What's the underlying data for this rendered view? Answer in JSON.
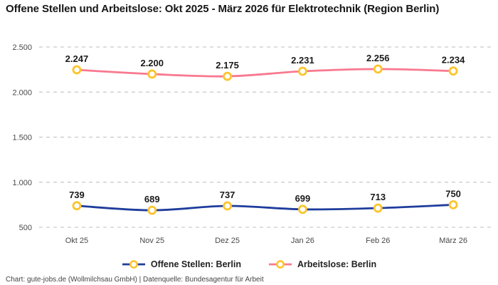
{
  "title": "Offene Stellen und Arbeitslose: Okt 2025 - März 2026 für Elektrotechnik (Region Berlin)",
  "footer": "Chart: gute-jobs.de (Wollmilchsau GmbH) | Datenquelle: Bundesagentur für Arbeit",
  "colors": {
    "title_text": "#161616",
    "axis_text": "#494949",
    "gridline": "#c9c9c9",
    "data_label_text": "#1a1a1a",
    "marker_stroke": "#fcc42c",
    "marker_fill": "#ffffff",
    "series_blue": "#1f3d9c",
    "series_pink": "#f8798f"
  },
  "chart_data": {
    "type": "line",
    "title": "Offene Stellen und Arbeitslose: Okt 2025 - März 2026 für Elektrotechnik (Region Berlin)",
    "categories": [
      "Okt 25",
      "Nov 25",
      "Dez 25",
      "Jan 26",
      "Feb 26",
      "März 26"
    ],
    "series": [
      {
        "name": "Offene Stellen: Berlin",
        "color": "#1f3d9c",
        "values": [
          739,
          689,
          737,
          699,
          713,
          750
        ],
        "labels": [
          "739",
          "689",
          "737",
          "699",
          "713",
          "750"
        ]
      },
      {
        "name": "Arbeitslose: Berlin",
        "color": "#f8798f",
        "values": [
          2247,
          2200,
          2175,
          2231,
          2256,
          2234
        ],
        "labels": [
          "2.247",
          "2.200",
          "2.175",
          "2.231",
          "2.256",
          "2.234"
        ]
      }
    ],
    "xlabel": "",
    "ylabel": "",
    "y_ticks": [
      {
        "value": 2500,
        "label": "2.500"
      },
      {
        "value": 2000,
        "label": "2.000"
      },
      {
        "value": 1500,
        "label": "1.500"
      },
      {
        "value": 1000,
        "label": "1.000"
      },
      {
        "value": 500,
        "label": "500"
      }
    ],
    "ylim": [
      500,
      2500
    ],
    "grid": "horizontal-dashed",
    "legend_position": "bottom",
    "data_labels_shown": true
  }
}
